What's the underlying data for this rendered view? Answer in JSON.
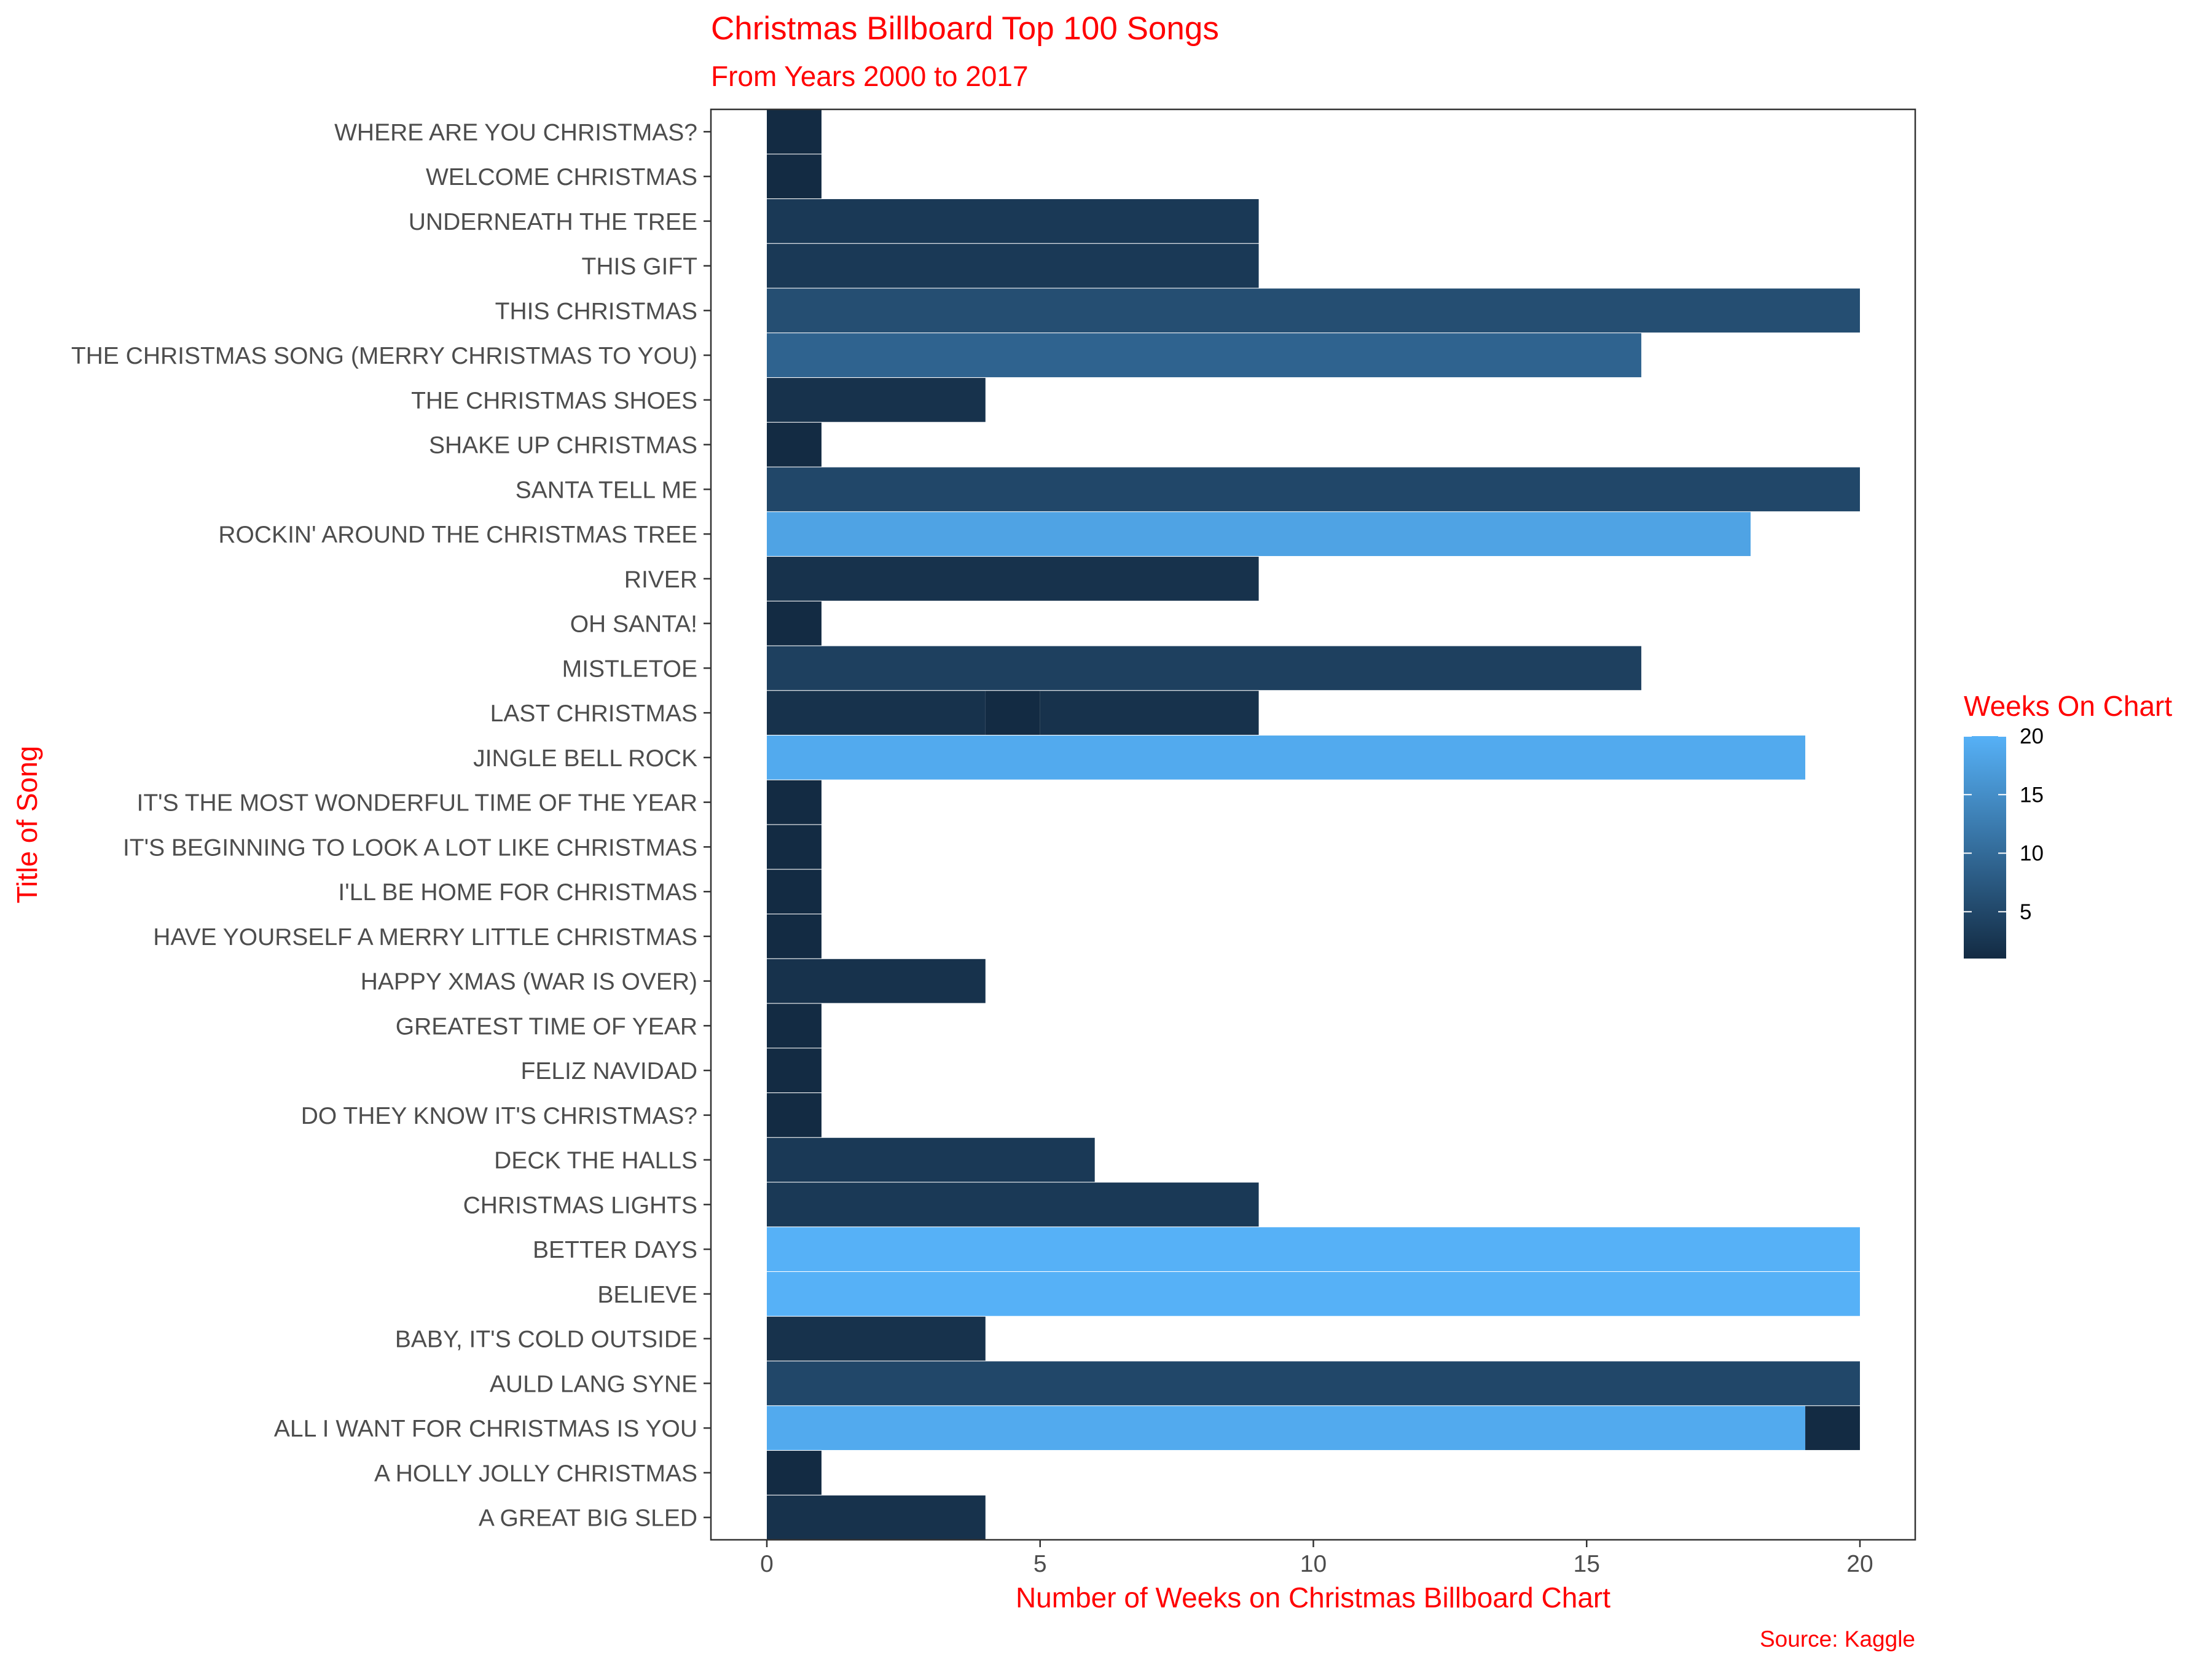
{
  "chart_data": {
    "type": "bar",
    "orientation": "horizontal",
    "stacked": true,
    "title": "Christmas Billboard Top 100 Songs",
    "subtitle": "From Years 2000 to 2017",
    "xlabel": "Number of Weeks on Christmas Billboard Chart",
    "ylabel": "Title of Song",
    "caption": "Source: Kaggle",
    "xlim": [
      0,
      20
    ],
    "x_ticks": [
      0,
      5,
      10,
      15,
      20
    ],
    "grid": false,
    "legend": {
      "title": "Weeks On Chart",
      "placement": "right",
      "ticks": [
        5,
        10,
        15,
        20
      ],
      "range": [
        1,
        20
      ],
      "color_low": "#132B43",
      "color_high": "#56B1F7"
    },
    "categories": [
      "WHERE ARE YOU CHRISTMAS?",
      "WELCOME CHRISTMAS",
      "UNDERNEATH THE TREE",
      "THIS GIFT",
      "THIS CHRISTMAS",
      "THE CHRISTMAS SONG (MERRY CHRISTMAS TO YOU)",
      "THE CHRISTMAS SHOES",
      "SHAKE UP CHRISTMAS",
      "SANTA TELL ME",
      "ROCKIN' AROUND THE CHRISTMAS TREE",
      "RIVER",
      "OH SANTA!",
      "MISTLETOE",
      "LAST CHRISTMAS",
      "JINGLE BELL ROCK",
      "IT'S THE MOST WONDERFUL TIME OF THE YEAR",
      "IT'S BEGINNING TO LOOK A LOT LIKE CHRISTMAS",
      "I'LL BE HOME FOR CHRISTMAS",
      "HAVE YOURSELF A MERRY LITTLE CHRISTMAS",
      "HAPPY XMAS (WAR IS OVER)",
      "GREATEST TIME OF YEAR",
      "FELIZ NAVIDAD",
      "DO THEY KNOW IT'S CHRISTMAS?",
      "DECK THE HALLS",
      "CHRISTMAS LIGHTS",
      "BETTER DAYS",
      "BELIEVE",
      "BABY, IT'S COLD OUTSIDE",
      "AULD LANG SYNE",
      "ALL I WANT FOR CHRISTMAS IS YOU",
      "A HOLLY JOLLY CHRISTMAS",
      "A GREAT BIG SLED"
    ],
    "segments": [
      [
        {
          "weeks": 1,
          "color_value": 1
        }
      ],
      [
        {
          "weeks": 1,
          "color_value": 1
        }
      ],
      [
        {
          "weeks": 9,
          "color_value": 3
        }
      ],
      [
        {
          "weeks": 9,
          "color_value": 3
        }
      ],
      [
        {
          "weeks": 20,
          "color_value": 6
        }
      ],
      [
        {
          "weeks": 16,
          "color_value": 9
        }
      ],
      [
        {
          "weeks": 4,
          "color_value": 2
        }
      ],
      [
        {
          "weeks": 1,
          "color_value": 1
        }
      ],
      [
        {
          "weeks": 20,
          "color_value": 5
        }
      ],
      [
        {
          "weeks": 18,
          "color_value": 18
        }
      ],
      [
        {
          "weeks": 9,
          "color_value": 2
        }
      ],
      [
        {
          "weeks": 1,
          "color_value": 1
        }
      ],
      [
        {
          "weeks": 16,
          "color_value": 4
        }
      ],
      [
        {
          "weeks": 4,
          "color_value": 2
        },
        {
          "weeks": 1,
          "color_value": 1
        },
        {
          "weeks": 4,
          "color_value": 2
        }
      ],
      [
        {
          "weeks": 19,
          "color_value": 19
        }
      ],
      [
        {
          "weeks": 1,
          "color_value": 1
        }
      ],
      [
        {
          "weeks": 1,
          "color_value": 1
        }
      ],
      [
        {
          "weeks": 1,
          "color_value": 1
        }
      ],
      [
        {
          "weeks": 1,
          "color_value": 1
        }
      ],
      [
        {
          "weeks": 4,
          "color_value": 2
        }
      ],
      [
        {
          "weeks": 1,
          "color_value": 1
        }
      ],
      [
        {
          "weeks": 1,
          "color_value": 1
        }
      ],
      [
        {
          "weeks": 1,
          "color_value": 1
        }
      ],
      [
        {
          "weeks": 6,
          "color_value": 3
        }
      ],
      [
        {
          "weeks": 9,
          "color_value": 3
        }
      ],
      [
        {
          "weeks": 20,
          "color_value": 20
        }
      ],
      [
        {
          "weeks": 20,
          "color_value": 20
        }
      ],
      [
        {
          "weeks": 4,
          "color_value": 2
        }
      ],
      [
        {
          "weeks": 20,
          "color_value": 5
        }
      ],
      [
        {
          "weeks": 19,
          "color_value": 19
        },
        {
          "weeks": 1,
          "color_value": 1
        }
      ],
      [
        {
          "weeks": 1,
          "color_value": 1
        }
      ],
      [
        {
          "weeks": 4,
          "color_value": 2
        }
      ]
    ]
  }
}
